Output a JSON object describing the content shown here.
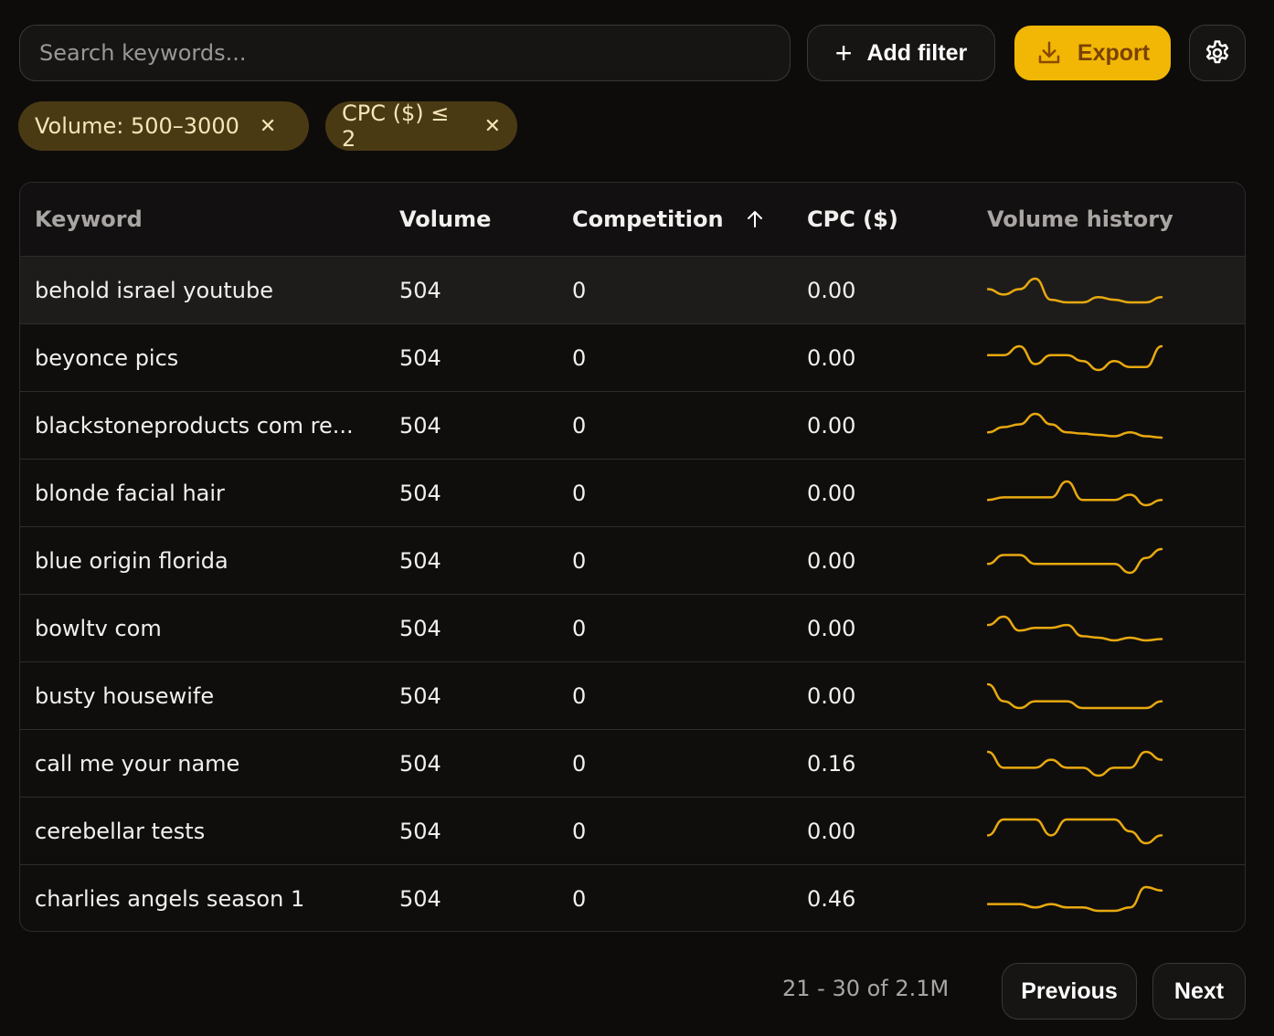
{
  "toolbar": {
    "search_placeholder": "Search keywords...",
    "add_filter_label": "Add filter",
    "export_label": "Export",
    "settings_icon": "gear-icon"
  },
  "filters": [
    {
      "label": "Volume: 500–3000"
    },
    {
      "label": "CPC ($) ≤ 2"
    }
  ],
  "colors": {
    "accent": "#f2b705",
    "sparkline": "#e8a90f",
    "chip_bg": "#4a3a14",
    "background": "#0e0c0b"
  },
  "table": {
    "headers": {
      "keyword": "Keyword",
      "volume": "Volume",
      "competition": "Competition",
      "cpc": "CPC ($)",
      "history": "Volume history"
    },
    "sort": {
      "column": "competition",
      "direction": "ascending"
    },
    "rows": [
      {
        "keyword": "behold israel youtube",
        "volume": "504",
        "competition": "0",
        "cpc": "0.00",
        "history": [
          6,
          4,
          6,
          10,
          2,
          1,
          1,
          3,
          2,
          1,
          1,
          3
        ]
      },
      {
        "keyword": "beyonce pics",
        "volume": "504",
        "competition": "0",
        "cpc": "0.00",
        "history": [
          6,
          6,
          9,
          3,
          6,
          6,
          4,
          1,
          4,
          2,
          2,
          9
        ]
      },
      {
        "keyword": "blackstoneproducts com re...",
        "volume": "504",
        "competition": "0",
        "cpc": "0.00",
        "history": [
          2,
          4,
          5,
          9,
          5,
          2,
          1.5,
          1,
          0.5,
          2,
          0.5,
          0
        ]
      },
      {
        "keyword": "blonde facial hair",
        "volume": "504",
        "competition": "0",
        "cpc": "0.00",
        "history": [
          3,
          4,
          4,
          4,
          4,
          10,
          3,
          3,
          3,
          5,
          1,
          3
        ]
      },
      {
        "keyword": "blue origin florida",
        "volume": "504",
        "competition": "0",
        "cpc": "0.00",
        "history": [
          4,
          7,
          7,
          4,
          4,
          4,
          4,
          4,
          4,
          1,
          6,
          9
        ]
      },
      {
        "keyword": "bowltv com",
        "volume": "504",
        "competition": "0",
        "cpc": "0.00",
        "history": [
          6,
          9,
          4,
          5,
          5,
          6,
          2,
          1.5,
          0.5,
          1.5,
          0.5,
          1
        ]
      },
      {
        "keyword": "busty housewife",
        "volume": "504",
        "competition": "0",
        "cpc": "0.00",
        "history": [
          10,
          5,
          3,
          5,
          5,
          5,
          3,
          3,
          3,
          3,
          3,
          5
        ]
      },
      {
        "keyword": "call me your name",
        "volume": "504",
        "competition": "0",
        "cpc": "0.16",
        "history": [
          8,
          4,
          4,
          4,
          6,
          4,
          4,
          2,
          4,
          4,
          8,
          6
        ]
      },
      {
        "keyword": "cerebellar tests",
        "volume": "504",
        "competition": "0",
        "cpc": "0.00",
        "history": [
          4,
          8,
          8,
          8,
          4,
          8,
          8,
          8,
          8,
          5,
          2,
          4
        ]
      },
      {
        "keyword": "charlies angels season 1",
        "volume": "504",
        "competition": "0",
        "cpc": "0.46",
        "history": [
          2,
          2,
          2,
          1,
          2,
          1,
          1,
          0,
          0,
          1,
          7,
          6
        ]
      }
    ]
  },
  "pagination": {
    "range": "21 - 30 of 2.1M",
    "previous_label": "Previous",
    "next_label": "Next"
  }
}
